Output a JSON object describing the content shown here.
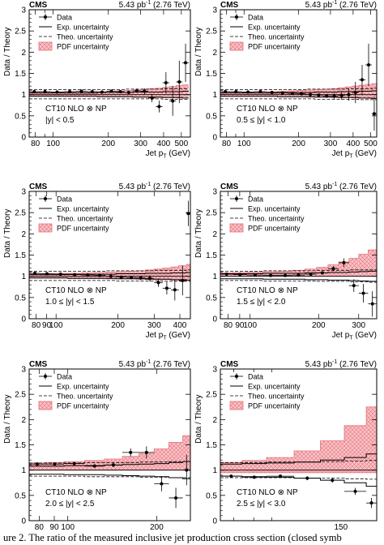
{
  "figure": {
    "caption_fragment": "ure 2. The ratio of the measured inclusive jet production cross section (closed symb",
    "xlabel_prefix": "Jet p",
    "xlabel_sub": "T",
    "xlabel_unit": "(GeV)",
    "ylabel": "Data / Theory",
    "experiment": "CMS",
    "lumi_base": "5.43 pb",
    "lumi_exp": "-1",
    "lumi_energy": "(2.76 TeV)",
    "theory": "CT10 NLO ⊗ NP",
    "legend": [
      "Data",
      "Exp. uncertainty",
      "Theo. uncertainty",
      "PDF uncertainty"
    ]
  },
  "colors": {
    "pdf_band": "#e8727a",
    "pdf_fill": "#f7c4c8"
  },
  "chart_data": [
    {
      "type": "scatter",
      "panel": "1",
      "ybin": "|y| < 0.5",
      "xscale": "log",
      "xlim": [
        74,
        560
      ],
      "ylim": [
        0,
        3
      ],
      "xticks": [
        80,
        100,
        200,
        300,
        400,
        500
      ],
      "yticks": [
        0,
        0.5,
        1,
        1.5,
        2,
        2.5,
        3
      ],
      "bins": [
        [
          74,
          84
        ],
        [
          84,
          97
        ],
        [
          97,
          114
        ],
        [
          114,
          133
        ],
        [
          133,
          153
        ],
        [
          153,
          174
        ],
        [
          174,
          196
        ],
        [
          196,
          220
        ],
        [
          220,
          245
        ],
        [
          245,
          272
        ],
        [
          272,
          300
        ],
        [
          300,
          330
        ],
        [
          330,
          362
        ],
        [
          362,
          395
        ],
        [
          395,
          430
        ],
        [
          430,
          468
        ],
        [
          468,
          507
        ],
        [
          507,
          548
        ]
      ],
      "data": [
        1.07,
        1.07,
        1.06,
        1.07,
        1.08,
        1.07,
        1.06,
        1.08,
        1.07,
        1.05,
        1.09,
        1.08,
        0.92,
        0.72,
        1.28,
        0.85,
        1.3,
        1.75
      ],
      "data_err": [
        0.03,
        0.02,
        0.02,
        0.02,
        0.02,
        0.02,
        0.02,
        0.03,
        0.03,
        0.04,
        0.05,
        0.07,
        0.1,
        0.14,
        0.25,
        0.35,
        0.5,
        0.45
      ],
      "pdf_up": [
        1.06,
        1.06,
        1.06,
        1.06,
        1.06,
        1.07,
        1.07,
        1.08,
        1.09,
        1.1,
        1.11,
        1.12,
        1.14,
        1.15,
        1.17,
        1.19,
        1.21,
        1.23
      ],
      "pdf_dn": [
        0.97,
        0.97,
        0.97,
        0.96,
        0.96,
        0.96,
        0.96,
        0.95,
        0.95,
        0.95,
        0.94,
        0.94,
        0.94,
        0.93,
        0.93,
        0.93,
        0.92,
        0.92
      ],
      "exp_up": [
        1.04,
        1.04,
        1.04,
        1.04,
        1.04,
        1.04,
        1.05,
        1.05,
        1.05,
        1.05,
        1.06,
        1.06,
        1.06,
        1.06,
        1.07,
        1.07,
        1.07,
        1.08
      ],
      "exp_dn": [
        0.96,
        0.96,
        0.96,
        0.96,
        0.96,
        0.96,
        0.95,
        0.95,
        0.95,
        0.95,
        0.94,
        0.94,
        0.94,
        0.94,
        0.93,
        0.93,
        0.93,
        0.92
      ],
      "theo_up": [
        1.12,
        1.12,
        1.12,
        1.12,
        1.12,
        1.12,
        1.12,
        1.12,
        1.12,
        1.13,
        1.13,
        1.13,
        1.13,
        1.13,
        1.14,
        1.14,
        1.14,
        1.14
      ],
      "theo_dn": [
        0.9,
        0.9,
        0.9,
        0.9,
        0.9,
        0.9,
        0.9,
        0.9,
        0.9,
        0.9,
        0.9,
        0.9,
        0.9,
        0.9,
        0.89,
        0.89,
        0.89,
        0.89
      ]
    },
    {
      "type": "scatter",
      "panel": "2",
      "ybin": "0.5 ≤ |y| < 1.0",
      "xscale": "log",
      "xlim": [
        74,
        540
      ],
      "ylim": [
        0,
        3
      ],
      "xticks": [
        80,
        100,
        200,
        300,
        400,
        500
      ],
      "yticks": [
        0,
        0.5,
        1,
        1.5,
        2,
        2.5,
        3
      ],
      "bins": [
        [
          74,
          84
        ],
        [
          84,
          97
        ],
        [
          97,
          114
        ],
        [
          114,
          133
        ],
        [
          133,
          153
        ],
        [
          153,
          174
        ],
        [
          174,
          196
        ],
        [
          196,
          220
        ],
        [
          220,
          245
        ],
        [
          245,
          272
        ],
        [
          272,
          300
        ],
        [
          300,
          330
        ],
        [
          330,
          362
        ],
        [
          362,
          395
        ],
        [
          395,
          430
        ],
        [
          430,
          468
        ],
        [
          468,
          507
        ],
        [
          507,
          540
        ]
      ],
      "data": [
        1.07,
        1.07,
        1.06,
        1.07,
        1.05,
        1.04,
        1.03,
        1.02,
        1.0,
        0.99,
        0.97,
        0.97,
        0.98,
        1.0,
        1.05,
        1.35,
        1.7,
        0.55
      ],
      "data_err": [
        0.03,
        0.02,
        0.02,
        0.02,
        0.02,
        0.02,
        0.02,
        0.03,
        0.03,
        0.04,
        0.05,
        0.07,
        0.1,
        0.14,
        0.25,
        0.35,
        0.5,
        0.4
      ],
      "pdf_up": [
        1.06,
        1.06,
        1.06,
        1.07,
        1.07,
        1.08,
        1.09,
        1.1,
        1.11,
        1.12,
        1.13,
        1.14,
        1.16,
        1.18,
        1.2,
        1.22,
        1.24,
        1.26
      ],
      "pdf_dn": [
        0.96,
        0.96,
        0.96,
        0.96,
        0.96,
        0.95,
        0.95,
        0.95,
        0.94,
        0.94,
        0.94,
        0.93,
        0.93,
        0.93,
        0.92,
        0.92,
        0.91,
        0.91
      ],
      "exp_up": [
        1.04,
        1.04,
        1.04,
        1.04,
        1.04,
        1.05,
        1.05,
        1.05,
        1.05,
        1.06,
        1.06,
        1.06,
        1.07,
        1.07,
        1.07,
        1.08,
        1.08,
        1.09
      ],
      "exp_dn": [
        0.96,
        0.96,
        0.96,
        0.96,
        0.96,
        0.95,
        0.95,
        0.95,
        0.95,
        0.94,
        0.94,
        0.94,
        0.93,
        0.93,
        0.93,
        0.92,
        0.92,
        0.91
      ],
      "theo_up": [
        1.12,
        1.12,
        1.12,
        1.12,
        1.12,
        1.12,
        1.12,
        1.12,
        1.13,
        1.13,
        1.13,
        1.13,
        1.13,
        1.14,
        1.14,
        1.14,
        1.14,
        1.15
      ],
      "theo_dn": [
        0.9,
        0.9,
        0.9,
        0.9,
        0.9,
        0.9,
        0.9,
        0.9,
        0.9,
        0.89,
        0.89,
        0.89,
        0.89,
        0.89,
        0.89,
        0.88,
        0.88,
        0.88
      ]
    },
    {
      "type": "scatter",
      "panel": "3",
      "ybin": "1.0 ≤ |y| < 1.5",
      "xscale": "log",
      "xlim": [
        74,
        450
      ],
      "ylim": [
        0,
        3
      ],
      "xticks": [
        80,
        90,
        100,
        200,
        300,
        400
      ],
      "yticks": [
        0,
        0.5,
        1,
        1.5,
        2,
        2.5,
        3
      ],
      "bins": [
        [
          74,
          84
        ],
        [
          84,
          97
        ],
        [
          97,
          114
        ],
        [
          114,
          133
        ],
        [
          133,
          153
        ],
        [
          153,
          174
        ],
        [
          174,
          196
        ],
        [
          196,
          220
        ],
        [
          220,
          245
        ],
        [
          245,
          272
        ],
        [
          272,
          300
        ],
        [
          300,
          330
        ],
        [
          330,
          362
        ],
        [
          362,
          395
        ],
        [
          395,
          430
        ],
        [
          430,
          450
        ]
      ],
      "data": [
        1.07,
        1.06,
        1.05,
        1.04,
        1.03,
        1.02,
        1.0,
        0.98,
        0.97,
        0.96,
        0.95,
        0.85,
        0.72,
        0.68,
        0.9,
        2.48
      ],
      "data_err": [
        0.03,
        0.02,
        0.02,
        0.02,
        0.02,
        0.02,
        0.03,
        0.03,
        0.04,
        0.05,
        0.07,
        0.1,
        0.15,
        0.25,
        0.35,
        0.3
      ],
      "pdf_up": [
        1.06,
        1.06,
        1.07,
        1.07,
        1.08,
        1.09,
        1.1,
        1.11,
        1.12,
        1.13,
        1.15,
        1.17,
        1.19,
        1.22,
        1.25,
        1.28
      ],
      "pdf_dn": [
        0.96,
        0.96,
        0.96,
        0.95,
        0.95,
        0.95,
        0.94,
        0.94,
        0.94,
        0.93,
        0.93,
        0.92,
        0.92,
        0.91,
        0.91,
        0.9
      ],
      "exp_up": [
        1.04,
        1.04,
        1.04,
        1.05,
        1.05,
        1.05,
        1.05,
        1.06,
        1.06,
        1.06,
        1.07,
        1.07,
        1.07,
        1.08,
        1.08,
        1.09
      ],
      "exp_dn": [
        0.96,
        0.96,
        0.96,
        0.95,
        0.95,
        0.95,
        0.95,
        0.94,
        0.94,
        0.94,
        0.93,
        0.93,
        0.93,
        0.92,
        0.92,
        0.91
      ],
      "theo_up": [
        1.12,
        1.12,
        1.12,
        1.12,
        1.12,
        1.12,
        1.13,
        1.13,
        1.13,
        1.13,
        1.13,
        1.14,
        1.14,
        1.14,
        1.14,
        1.15
      ],
      "theo_dn": [
        0.9,
        0.9,
        0.9,
        0.9,
        0.9,
        0.9,
        0.9,
        0.89,
        0.89,
        0.89,
        0.89,
        0.89,
        0.88,
        0.88,
        0.88,
        0.88
      ]
    },
    {
      "type": "scatter",
      "panel": "4",
      "ybin": "1.5 ≤ |y| < 2.0",
      "xscale": "log",
      "xlim": [
        74,
        360
      ],
      "ylim": [
        0,
        3
      ],
      "xticks": [
        80,
        90,
        100,
        200,
        300
      ],
      "yticks": [
        0,
        0.5,
        1,
        1.5,
        2,
        2.5,
        3
      ],
      "bins": [
        [
          74,
          84
        ],
        [
          84,
          97
        ],
        [
          97,
          114
        ],
        [
          114,
          133
        ],
        [
          133,
          153
        ],
        [
          153,
          174
        ],
        [
          174,
          196
        ],
        [
          196,
          220
        ],
        [
          220,
          245
        ],
        [
          245,
          272
        ],
        [
          272,
          300
        ],
        [
          300,
          330
        ],
        [
          330,
          360
        ]
      ],
      "data": [
        1.05,
        1.04,
        1.03,
        1.02,
        1.02,
        1.03,
        1.05,
        1.08,
        1.18,
        1.32,
        0.78,
        0.6,
        0.35
      ],
      "data_err": [
        0.03,
        0.02,
        0.02,
        0.02,
        0.02,
        0.03,
        0.03,
        0.04,
        0.06,
        0.1,
        0.15,
        0.22,
        0.3
      ],
      "pdf_up": [
        1.08,
        1.09,
        1.1,
        1.11,
        1.12,
        1.14,
        1.17,
        1.21,
        1.27,
        1.34,
        1.42,
        1.52,
        1.62
      ],
      "pdf_dn": [
        1.0,
        1.0,
        1.0,
        1.0,
        1.0,
        1.0,
        1.0,
        1.0,
        1.0,
        1.0,
        1.0,
        1.0,
        1.0
      ],
      "exp_up": [
        1.06,
        1.06,
        1.06,
        1.07,
        1.07,
        1.07,
        1.08,
        1.08,
        1.09,
        1.09,
        1.1,
        1.11,
        1.12
      ],
      "exp_dn": [
        0.94,
        0.94,
        0.94,
        0.93,
        0.93,
        0.93,
        0.92,
        0.92,
        0.91,
        0.91,
        0.9,
        0.89,
        0.88
      ],
      "theo_up": [
        1.12,
        1.12,
        1.12,
        1.13,
        1.13,
        1.13,
        1.13,
        1.14,
        1.14,
        1.14,
        1.15,
        1.15,
        1.15
      ],
      "theo_dn": [
        0.9,
        0.9,
        0.9,
        0.89,
        0.89,
        0.89,
        0.89,
        0.88,
        0.88,
        0.88,
        0.87,
        0.87,
        0.86
      ]
    },
    {
      "type": "scatter",
      "panel": "5",
      "ybin": "2.0 ≤ |y| < 2.5",
      "xscale": "log",
      "xlim": [
        74,
        260
      ],
      "ylim": [
        0,
        3
      ],
      "xticks": [
        80,
        90,
        100,
        200
      ],
      "yticks": [
        0,
        0.5,
        1,
        1.5,
        2,
        2.5,
        3
      ],
      "bins": [
        [
          74,
          84
        ],
        [
          84,
          97
        ],
        [
          97,
          114
        ],
        [
          114,
          133
        ],
        [
          133,
          153
        ],
        [
          153,
          174
        ],
        [
          174,
          196
        ],
        [
          196,
          220
        ],
        [
          220,
          245
        ],
        [
          245,
          260
        ]
      ],
      "data": [
        1.12,
        1.12,
        1.13,
        1.08,
        1.1,
        1.35,
        1.35,
        0.73,
        0.45,
        1.0
      ],
      "data_err": [
        0.03,
        0.02,
        0.02,
        0.03,
        0.04,
        0.08,
        0.12,
        0.15,
        0.2,
        0.3
      ],
      "pdf_up": [
        1.14,
        1.15,
        1.17,
        1.19,
        1.22,
        1.27,
        1.33,
        1.42,
        1.55,
        1.68
      ],
      "pdf_dn": [
        1.0,
        1.0,
        1.0,
        1.0,
        1.0,
        1.0,
        1.0,
        1.0,
        1.0,
        1.0
      ],
      "exp_up": [
        1.08,
        1.08,
        1.09,
        1.09,
        1.1,
        1.11,
        1.12,
        1.13,
        1.15,
        1.17
      ],
      "exp_dn": [
        0.92,
        0.92,
        0.91,
        0.91,
        0.9,
        0.89,
        0.88,
        0.87,
        0.85,
        0.83
      ],
      "theo_up": [
        1.14,
        1.14,
        1.14,
        1.15,
        1.15,
        1.15,
        1.16,
        1.16,
        1.17,
        1.17
      ],
      "theo_dn": [
        0.88,
        0.88,
        0.88,
        0.87,
        0.87,
        0.87,
        0.86,
        0.86,
        0.85,
        0.85
      ]
    },
    {
      "type": "scatter",
      "panel": "6",
      "ybin": "2.5 ≤ |y| < 3.0",
      "xscale": "log",
      "xlim": [
        74,
        185
      ],
      "ylim": [
        0,
        3
      ],
      "xticks": [
        150
      ],
      "yticks": [
        0,
        0.5,
        1,
        1.5,
        2,
        2.5,
        3
      ],
      "bins": [
        [
          74,
          84
        ],
        [
          84,
          97
        ],
        [
          97,
          114
        ],
        [
          114,
          133
        ],
        [
          133,
          153
        ],
        [
          153,
          174
        ],
        [
          174,
          185
        ]
      ],
      "data": [
        0.88,
        0.86,
        0.88,
        0.84,
        0.8,
        0.58,
        0.35
      ],
      "data_err": [
        0.03,
        0.03,
        0.03,
        0.04,
        0.05,
        0.07,
        0.1
      ],
      "pdf_up": [
        1.15,
        1.19,
        1.25,
        1.38,
        1.58,
        1.88,
        2.25
      ],
      "pdf_dn": [
        0.95,
        0.95,
        0.95,
        0.95,
        0.95,
        0.95,
        0.95
      ],
      "exp_up": [
        1.12,
        1.13,
        1.14,
        1.16,
        1.2,
        1.25,
        1.32
      ],
      "exp_dn": [
        0.88,
        0.87,
        0.86,
        0.84,
        0.8,
        0.75,
        0.68
      ],
      "theo_up": [
        1.15,
        1.15,
        1.16,
        1.16,
        1.17,
        1.18,
        1.19
      ],
      "theo_dn": [
        0.85,
        0.85,
        0.85,
        0.84,
        0.84,
        0.83,
        0.82
      ]
    }
  ]
}
